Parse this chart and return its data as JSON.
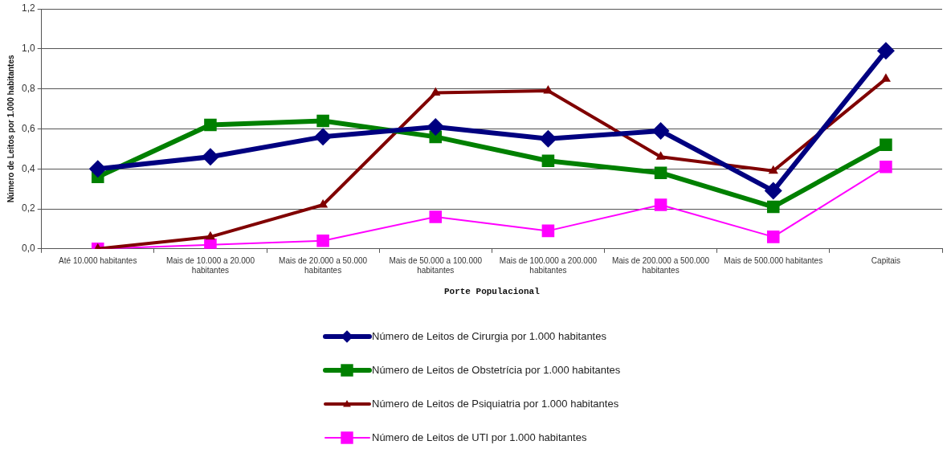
{
  "chart_data": {
    "type": "line",
    "xlabel": "Porte Populacional",
    "ylabel": "Número de Leitos por 1.000 habitantes",
    "categories": [
      "Até 10.000 habitantes",
      "Mais de 10.000 a 20.000 habitantes",
      "Mais de 20.000 a 50.000 habitantes",
      "Mais de 50.000 a 100.000 habitantes",
      "Mais de 100.000 a 200.000 habitantes",
      "Mais de 200.000 a 500.000 habitantes",
      "Mais de 500.000 habitantes",
      "Capitais"
    ],
    "series": [
      {
        "name": "Número de Leitos de Cirurgia por 1.000 habitantes",
        "color": "#000080",
        "marker": "diamond",
        "values": [
          0.4,
          0.46,
          0.56,
          0.61,
          0.55,
          0.59,
          0.29,
          0.99
        ]
      },
      {
        "name": "Número de Leitos de Obstetrícia por 1.000 habitantes",
        "color": "#008000",
        "marker": "square",
        "values": [
          0.36,
          0.62,
          0.64,
          0.56,
          0.44,
          0.38,
          0.21,
          0.52
        ]
      },
      {
        "name": "Número de Leitos de Psiquiatria por 1.000 habitantes",
        "color": "#800000",
        "marker": "triangle",
        "values": [
          0.0,
          0.06,
          0.22,
          0.78,
          0.79,
          0.46,
          0.39,
          0.85
        ]
      },
      {
        "name": "Número de Leitos de UTI por 1.000 habitantes",
        "color": "#ff00ff",
        "marker": "square",
        "values": [
          0.0,
          0.02,
          0.04,
          0.16,
          0.09,
          0.22,
          0.06,
          0.41
        ]
      }
    ],
    "ylim": [
      0,
      1.2
    ],
    "yticks": [
      {
        "value": 0,
        "label": "0,0"
      },
      {
        "value": 0.2,
        "label": "0,2"
      },
      {
        "value": 0.4,
        "label": "0,4"
      },
      {
        "value": 0.6,
        "label": "0,6"
      },
      {
        "value": 0.8,
        "label": "0,8"
      },
      {
        "value": 1.0,
        "label": "1,0"
      },
      {
        "value": 1.2,
        "label": "1,2"
      }
    ],
    "grid": "y",
    "legend": "bottom",
    "line_style": "solid"
  }
}
